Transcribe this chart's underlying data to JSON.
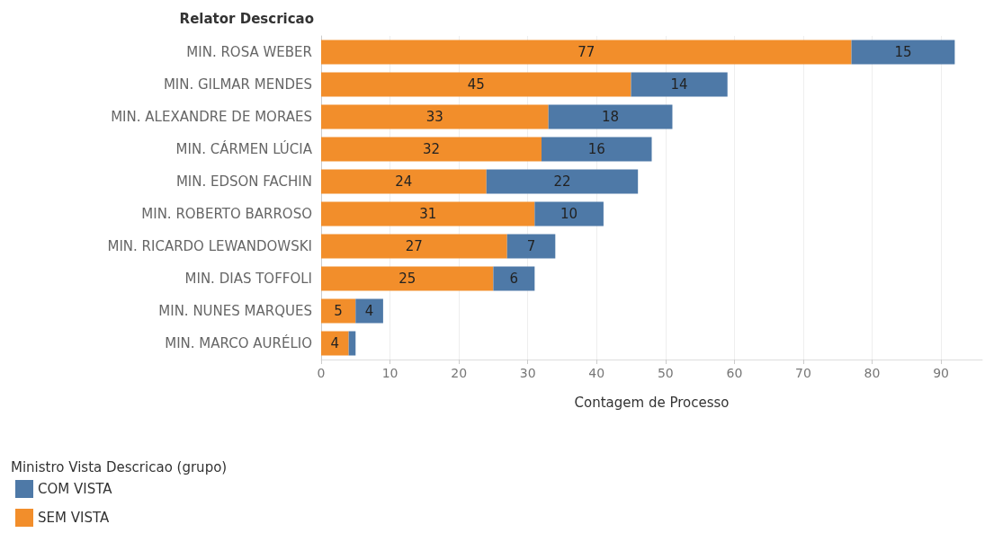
{
  "chart_data": {
    "type": "bar",
    "orientation": "horizontal",
    "stacked": true,
    "ylabel": "Relator Descricao",
    "xlabel": "Contagem de Processo",
    "legend_title": "Ministro Vista Descricao (grupo)",
    "legend": "bottom left",
    "grid": "x",
    "categories": [
      "MIN. ROSA WEBER",
      "MIN. GILMAR MENDES",
      "MIN. ALEXANDRE DE MORAES",
      "MIN. CÁRMEN LÚCIA",
      "MIN. EDSON FACHIN",
      "MIN. ROBERTO BARROSO",
      "MIN. RICARDO LEWANDOWSKI",
      "MIN. DIAS TOFFOLI",
      "MIN. NUNES MARQUES",
      "MIN. MARCO AURÉLIO"
    ],
    "xlim": [
      0,
      96
    ],
    "xticks": [
      0,
      10,
      20,
      30,
      40,
      50,
      60,
      70,
      80,
      90
    ],
    "series": [
      {
        "name": "SEM VISTA",
        "color": "#f28e2b",
        "values": [
          77,
          45,
          33,
          32,
          24,
          31,
          27,
          25,
          5,
          4
        ],
        "value_labels": [
          "77",
          "45",
          "33",
          "32",
          "24",
          "31",
          "27",
          "25",
          "5",
          "4"
        ]
      },
      {
        "name": "COM VISTA",
        "color": "#4e79a7",
        "values": [
          15,
          14,
          18,
          16,
          22,
          10,
          7,
          6,
          4,
          1
        ],
        "value_labels": [
          "15",
          "14",
          "18",
          "16",
          "22",
          "10",
          "7",
          "6",
          "4",
          null
        ]
      }
    ]
  }
}
